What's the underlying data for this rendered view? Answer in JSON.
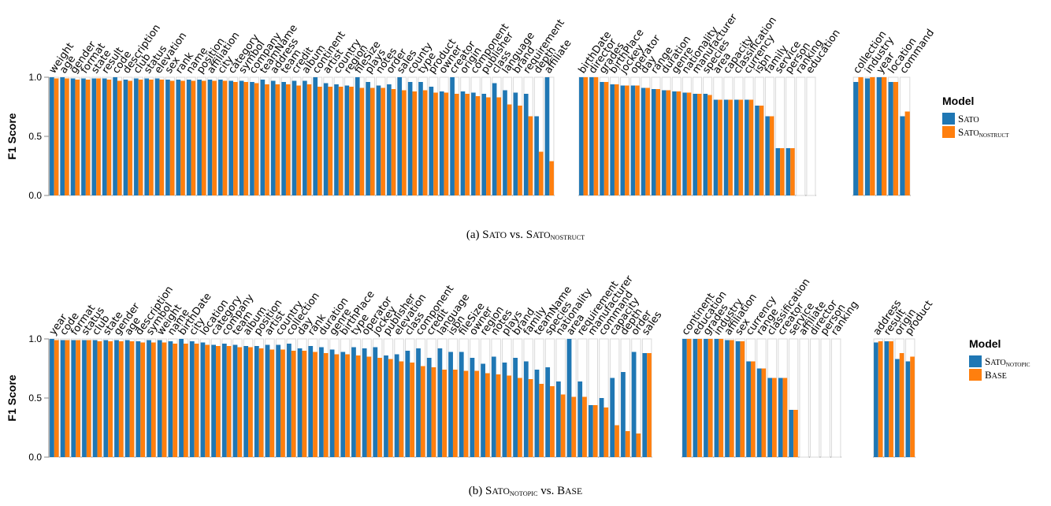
{
  "colors": {
    "series_a": "#1f77b4",
    "series_b": "#ff7f0e",
    "bg_bar": "#d9d9d9"
  },
  "chart_data": [
    {
      "type": "bar",
      "caption": "(a) Sato vs. SatonoStruct",
      "ylabel": "F1 Score",
      "ylim": [
        0,
        1
      ],
      "yticks": [
        "0.0",
        "0.5",
        "1.0"
      ],
      "legend": {
        "title": "Model",
        "placement": "right",
        "entries": [
          {
            "label": "Sato",
            "color": "#1f77b4"
          },
          {
            "label": "SatonoStruct",
            "color": "#ff7f0e"
          }
        ]
      },
      "series": [
        {
          "name": "Sato"
        },
        {
          "name": "SatonoStruct"
        }
      ],
      "groups": [
        {
          "categories": [
            "weight",
            "age",
            "gender",
            "format",
            "state",
            "result",
            "code",
            "description",
            "club",
            "status",
            "elevation",
            "sex",
            "rank",
            "name",
            "position",
            "affiliation",
            "city",
            "category",
            "symbol",
            "company",
            "teamName",
            "address",
            "team",
            "credit",
            "album",
            "continent",
            "artist",
            "country",
            "region",
            "fileSize",
            "plays",
            "notes",
            "order",
            "sales",
            "county",
            "type",
            "product",
            "owner",
            "creator",
            "origin",
            "component",
            "publisher",
            "class",
            "language",
            "brand",
            "requirement",
            "depth",
            "affiliate"
          ],
          "series_values": [
            [
              1.0,
              1.0,
              0.99,
              0.99,
              0.99,
              0.99,
              1.0,
              0.98,
              0.99,
              0.99,
              0.99,
              0.98,
              0.98,
              0.98,
              0.98,
              0.98,
              0.98,
              0.97,
              0.97,
              0.96,
              0.98,
              0.97,
              0.96,
              0.97,
              0.97,
              1.0,
              0.95,
              0.94,
              0.93,
              1.0,
              0.96,
              0.93,
              0.94,
              1.0,
              0.96,
              0.96,
              0.92,
              0.88,
              1.0,
              0.88,
              0.87,
              0.86,
              0.95,
              0.89,
              0.87,
              0.86,
              0.67,
              1.0
            ],
            [
              0.99,
              0.99,
              0.98,
              0.98,
              0.99,
              0.98,
              0.97,
              0.97,
              0.98,
              0.98,
              0.98,
              0.97,
              0.97,
              0.97,
              0.97,
              0.97,
              0.97,
              0.96,
              0.96,
              0.95,
              0.94,
              0.94,
              0.94,
              0.93,
              0.94,
              0.92,
              0.92,
              0.92,
              0.92,
              0.91,
              0.91,
              0.91,
              0.9,
              0.89,
              0.88,
              0.89,
              0.87,
              0.87,
              0.86,
              0.86,
              0.84,
              0.83,
              0.83,
              0.77,
              0.76,
              0.67,
              0.37,
              0.29
            ]
          ]
        },
        {
          "categories": [
            "birthDate",
            "director",
            "grades",
            "birthPlace",
            "jockey",
            "operator",
            "day",
            "range",
            "duration",
            "genre",
            "nationality",
            "manufacturer",
            "species",
            "area",
            "capacity",
            "classification",
            "currency",
            "isbn",
            "family",
            "service",
            "person",
            "ranking",
            "education"
          ],
          "series_values": [
            [
              1.0,
              1.0,
              0.96,
              0.94,
              0.93,
              0.93,
              0.91,
              0.9,
              0.89,
              0.88,
              0.87,
              0.86,
              0.86,
              0.81,
              0.81,
              0.81,
              0.81,
              0.76,
              0.67,
              0.4,
              0.4,
              0.0,
              0.0
            ],
            [
              1.0,
              1.0,
              0.96,
              0.94,
              0.93,
              0.93,
              0.91,
              0.9,
              0.89,
              0.88,
              0.87,
              0.86,
              0.85,
              0.81,
              0.81,
              0.81,
              0.81,
              0.76,
              0.67,
              0.4,
              0.4,
              0.0,
              0.0
            ]
          ]
        },
        {
          "categories": [
            "collection",
            "industry",
            "year",
            "location",
            "command"
          ],
          "series_values": [
            [
              0.96,
              0.99,
              1.0,
              0.96,
              0.67
            ],
            [
              1.0,
              1.0,
              1.0,
              0.96,
              0.71
            ]
          ]
        }
      ]
    },
    {
      "type": "bar",
      "caption": "(b) SatonoTopic vs. Base",
      "ylabel": "F1 Score",
      "ylim": [
        0,
        1
      ],
      "yticks": [
        "0.0",
        "0.5",
        "1.0"
      ],
      "legend": {
        "title": "Model",
        "placement": "right",
        "entries": [
          {
            "label": "SatonoTopic",
            "color": "#1f77b4"
          },
          {
            "label": "Base",
            "color": "#ff7f0e"
          }
        ]
      },
      "series": [
        {
          "name": "SatonoTopic"
        },
        {
          "name": "Base"
        }
      ],
      "groups": [
        {
          "categories": [
            "year",
            "code",
            "format",
            "status",
            "club",
            "state",
            "gender",
            "age",
            "description",
            "symbol",
            "weight",
            "name",
            "birthDate",
            "city",
            "location",
            "category",
            "company",
            "team",
            "album",
            "position",
            "artist",
            "country",
            "collection",
            "day",
            "rank",
            "duration",
            "genre",
            "birthPlace",
            "type",
            "operator",
            "jockey",
            "publisher",
            "elevation",
            "class",
            "component",
            "credit",
            "language",
            "isbn",
            "fileSize",
            "owner",
            "region",
            "notes",
            "plays",
            "brand",
            "family",
            "teamName",
            "species",
            "nationality",
            "area",
            "requirement",
            "manufacturer",
            "command",
            "capacity",
            "depth",
            "order",
            "sales"
          ],
          "series_values": [
            [
              1.0,
              0.99,
              0.99,
              0.99,
              0.99,
              0.99,
              0.99,
              0.99,
              0.98,
              0.99,
              0.99,
              0.98,
              1.0,
              0.98,
              0.97,
              0.95,
              0.96,
              0.95,
              0.94,
              0.94,
              0.95,
              0.95,
              0.96,
              0.92,
              0.94,
              0.93,
              0.91,
              0.89,
              0.93,
              0.92,
              0.93,
              0.86,
              0.87,
              0.9,
              0.92,
              0.84,
              0.92,
              0.89,
              0.89,
              0.84,
              0.79,
              0.85,
              0.8,
              0.84,
              0.81,
              0.74,
              0.76,
              0.64,
              1.0,
              0.64,
              0.44,
              0.5,
              0.67,
              0.72,
              0.89,
              0.88
            ],
            [
              0.99,
              0.99,
              0.99,
              0.99,
              0.98,
              0.98,
              0.98,
              0.98,
              0.97,
              0.97,
              0.97,
              0.96,
              0.96,
              0.96,
              0.95,
              0.94,
              0.94,
              0.93,
              0.93,
              0.92,
              0.91,
              0.91,
              0.9,
              0.9,
              0.89,
              0.88,
              0.87,
              0.87,
              0.86,
              0.85,
              0.84,
              0.83,
              0.81,
              0.8,
              0.77,
              0.76,
              0.74,
              0.74,
              0.73,
              0.73,
              0.71,
              0.7,
              0.69,
              0.67,
              0.66,
              0.62,
              0.6,
              0.53,
              0.51,
              0.51,
              0.44,
              0.42,
              0.27,
              0.22,
              0.2,
              0.88
            ]
          ]
        },
        {
          "categories": [
            "continent",
            "education",
            "grades",
            "industry",
            "affiliation",
            "sex",
            "currency",
            "range",
            "classification",
            "creator",
            "service",
            "affiliate",
            "director",
            "person",
            "ranking"
          ],
          "series_values": [
            [
              1.0,
              1.0,
              1.0,
              1.0,
              0.99,
              0.98,
              0.81,
              0.75,
              0.67,
              0.67,
              0.4,
              0.0,
              0.0,
              0.0,
              0.0
            ],
            [
              1.0,
              1.0,
              1.0,
              1.0,
              0.99,
              0.98,
              0.81,
              0.75,
              0.67,
              0.67,
              0.4,
              0.0,
              0.0,
              0.0,
              0.0
            ]
          ]
        },
        {
          "categories": [
            "address",
            "result",
            "origin",
            "product"
          ],
          "series_values": [
            [
              0.97,
              0.98,
              0.83,
              0.81
            ],
            [
              0.98,
              0.98,
              0.88,
              0.85
            ]
          ]
        }
      ]
    }
  ]
}
